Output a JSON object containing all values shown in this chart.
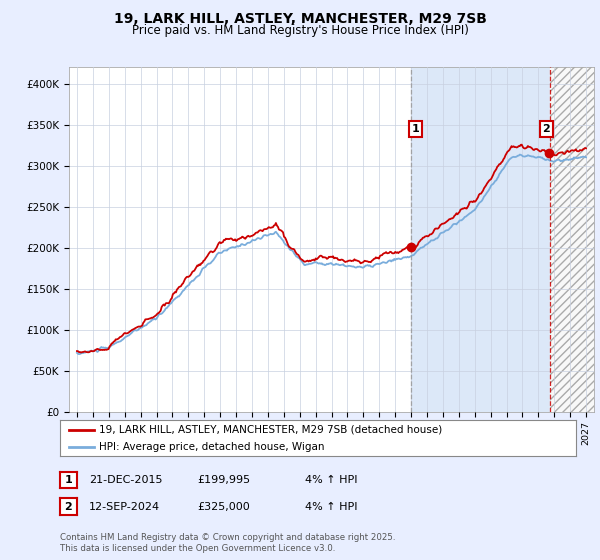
{
  "title": "19, LARK HILL, ASTLEY, MANCHESTER, M29 7SB",
  "subtitle": "Price paid vs. HM Land Registry's House Price Index (HPI)",
  "legend_line1": "19, LARK HILL, ASTLEY, MANCHESTER, M29 7SB (detached house)",
  "legend_line2": "HPI: Average price, detached house, Wigan",
  "annotation1_date": "21-DEC-2015",
  "annotation1_price": "£199,995",
  "annotation1_hpi": "4% ↑ HPI",
  "annotation2_date": "12-SEP-2024",
  "annotation2_price": "£325,000",
  "annotation2_hpi": "4% ↑ HPI",
  "footer": "Contains HM Land Registry data © Crown copyright and database right 2025.\nThis data is licensed under the Open Government Licence v3.0.",
  "red_color": "#cc0000",
  "blue_color": "#7aaddc",
  "background_color": "#e8eeff",
  "plot_bg_color": "#ffffff",
  "shade1_color": "#dce8f8",
  "grid_color": "#c8d0e0",
  "vline1_color": "#999999",
  "vline2_color": "#cc0000",
  "ylim_max": 420000,
  "yticks": [
    0,
    50000,
    100000,
    150000,
    200000,
    250000,
    300000,
    350000,
    400000
  ],
  "ytick_labels": [
    "£0",
    "£50K",
    "£100K",
    "£150K",
    "£200K",
    "£250K",
    "£300K",
    "£350K",
    "£400K"
  ],
  "sale1_year": 2015.97,
  "sale1_price": 199995,
  "sale2_year": 2024.71,
  "sale2_price": 325000,
  "xlim_min": 1994.5,
  "xlim_max": 2027.5
}
